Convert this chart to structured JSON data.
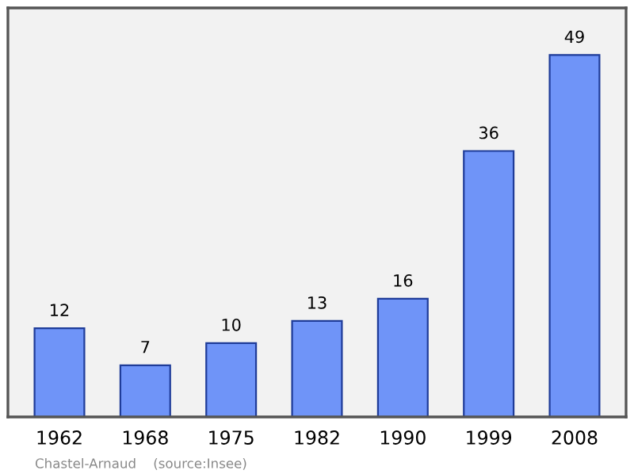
{
  "chart_data": {
    "type": "bar",
    "categories": [
      "1962",
      "1968",
      "1975",
      "1982",
      "1990",
      "1999",
      "2008"
    ],
    "values": [
      12,
      7,
      10,
      13,
      16,
      36,
      49
    ],
    "color": "#6f94f8",
    "data_labels": true,
    "grid": false,
    "annotations": [
      "Chastel-Arnaud    (source:Insee)"
    ]
  }
}
